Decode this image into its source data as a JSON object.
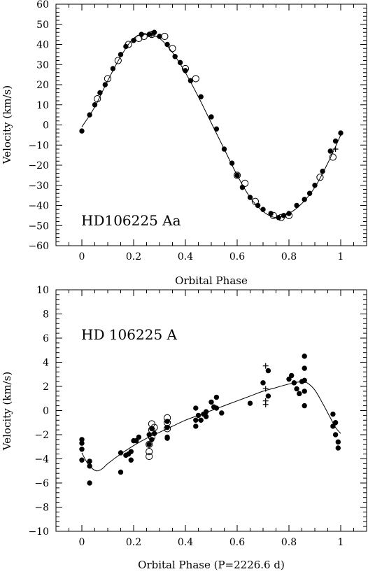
{
  "chart_data": [
    {
      "type": "scatter",
      "title": "HD106225 Aa",
      "xlabel": "Orbital Phase",
      "ylabel": "Velocity (km/s)",
      "xlim": [
        -0.1,
        1.1
      ],
      "ylim": [
        -60,
        60
      ],
      "xticks": [
        0,
        0.2,
        0.4,
        0.6,
        0.8,
        1
      ],
      "xtick_labels": [
        "0",
        "0.2",
        "0.4",
        "0.6",
        "0.8",
        "1"
      ],
      "yticks": [
        -60,
        -50,
        -40,
        -30,
        -20,
        -10,
        0,
        10,
        20,
        30,
        40,
        50,
        60
      ],
      "ytick_labels": [
        "−60",
        "−50",
        "−40",
        "−30",
        "−20",
        "−10",
        "0",
        "10",
        "20",
        "30",
        "40",
        "50",
        "60"
      ],
      "grid": false,
      "model_curve": {
        "x": [
          0.0,
          0.05,
          0.1,
          0.15,
          0.2,
          0.25,
          0.3,
          0.35,
          0.4,
          0.45,
          0.5,
          0.55,
          0.6,
          0.65,
          0.7,
          0.75,
          0.8,
          0.85,
          0.9,
          0.95,
          1.0
        ],
        "y": [
          -1,
          9,
          22,
          34,
          43,
          45,
          43,
          36,
          26,
          14,
          1,
          -12,
          -25,
          -36,
          -43,
          -46,
          -44,
          -39,
          -31,
          -19,
          -5
        ]
      },
      "series": [
        {
          "marker": "filled",
          "x": [
            0.0,
            0.03,
            0.05,
            0.07,
            0.09,
            0.12,
            0.15,
            0.17,
            0.2,
            0.23,
            0.26,
            0.28,
            0.3,
            0.33,
            0.36,
            0.38,
            0.4,
            0.42,
            0.46,
            0.5,
            0.52,
            0.55,
            0.58,
            0.6,
            0.62,
            0.65,
            0.68,
            0.7,
            0.73,
            0.76,
            0.78,
            0.8,
            0.83,
            0.86,
            0.88,
            0.9,
            0.93,
            0.96,
            0.98,
            1.0
          ],
          "y": [
            -3,
            5,
            10,
            16,
            20,
            28,
            35,
            39,
            42,
            45,
            45,
            46,
            44,
            40,
            34,
            31,
            27,
            22,
            14,
            4,
            -2,
            -12,
            -19,
            -25,
            -31,
            -36,
            -40,
            -42,
            -44,
            -46,
            -45,
            -44,
            -40,
            -37,
            -34,
            -30,
            -23,
            -13,
            -8,
            -4
          ]
        },
        {
          "marker": "open",
          "x": [
            0.06,
            0.1,
            0.14,
            0.18,
            0.22,
            0.24,
            0.27,
            0.32,
            0.35,
            0.4,
            0.44,
            0.6,
            0.63,
            0.67,
            0.74,
            0.77,
            0.8,
            0.92,
            0.97
          ],
          "y": [
            13,
            23,
            32,
            40,
            43,
            44,
            45,
            44,
            38,
            28,
            23,
            -25,
            -29,
            -38,
            -45,
            -46,
            -45,
            -26,
            -16
          ]
        },
        {
          "marker": "plus",
          "x": [
            0.27,
            0.98
          ],
          "y": [
            45,
            -12
          ]
        }
      ]
    },
    {
      "type": "scatter",
      "title": "HD 106225 A",
      "xlabel": "Orbital Phase (P=2226.6 d)",
      "ylabel": "Velocity (km/s)",
      "xlim": [
        -0.1,
        1.1
      ],
      "ylim": [
        -10,
        10
      ],
      "xticks": [
        0,
        0.2,
        0.4,
        0.6,
        0.8,
        1
      ],
      "xtick_labels": [
        "0",
        "0.2",
        "0.4",
        "0.6",
        "0.8",
        "1"
      ],
      "yticks": [
        -10,
        -8,
        -6,
        -4,
        -2,
        0,
        2,
        4,
        6,
        8,
        10
      ],
      "ytick_labels": [
        "−10",
        "−8",
        "−6",
        "−4",
        "−2",
        "0",
        "2",
        "4",
        "6",
        "8",
        "10"
      ],
      "grid": false,
      "model_curve": {
        "x": [
          0.0,
          0.02,
          0.04,
          0.06,
          0.08,
          0.1,
          0.15,
          0.2,
          0.25,
          0.3,
          0.35,
          0.4,
          0.45,
          0.5,
          0.55,
          0.6,
          0.65,
          0.7,
          0.75,
          0.8,
          0.85,
          0.87,
          0.9,
          0.93,
          0.96,
          0.98,
          1.0
        ],
        "y": [
          -3.5,
          -4.3,
          -4.8,
          -5.0,
          -4.8,
          -4.4,
          -3.6,
          -2.9,
          -2.3,
          -1.8,
          -1.3,
          -0.8,
          -0.4,
          0.0,
          0.4,
          0.8,
          1.2,
          1.6,
          1.9,
          2.2,
          2.4,
          2.3,
          1.7,
          0.6,
          -0.6,
          -1.4,
          -1.9
        ]
      },
      "series": [
        {
          "marker": "filled",
          "x": [
            0.0,
            0.0,
            0.0,
            0.0,
            0.03,
            0.03,
            0.03,
            0.15,
            0.15,
            0.17,
            0.18,
            0.19,
            0.19,
            0.2,
            0.21,
            0.22,
            0.26,
            0.26,
            0.27,
            0.27,
            0.28,
            0.33,
            0.33,
            0.33,
            0.33,
            0.44,
            0.44,
            0.44,
            0.45,
            0.46,
            0.47,
            0.48,
            0.48,
            0.5,
            0.51,
            0.52,
            0.52,
            0.54,
            0.65,
            0.7,
            0.72,
            0.72,
            0.8,
            0.81,
            0.82,
            0.83,
            0.84,
            0.85,
            0.86,
            0.86,
            0.86,
            0.86,
            0.86,
            0.97,
            0.97,
            0.98,
            0.98,
            0.99,
            0.99
          ],
          "y": [
            -4.1,
            -3.2,
            -2.7,
            -2.4,
            -4.2,
            -4.6,
            -6.0,
            -3.5,
            -5.1,
            -3.7,
            -3.6,
            -4.1,
            -3.4,
            -2.5,
            -2.5,
            -2.2,
            -2.8,
            -2.0,
            -1.5,
            -2.4,
            -1.9,
            -2.2,
            -1.4,
            -0.9,
            -2.3,
            -0.8,
            0.2,
            -1.3,
            -0.4,
            -0.8,
            -0.3,
            -0.5,
            -0.1,
            0.7,
            0.3,
            1.1,
            0.2,
            -0.2,
            0.6,
            2.3,
            3.3,
            1.2,
            2.6,
            2.9,
            2.3,
            1.8,
            1.4,
            2.4,
            4.5,
            3.5,
            2.5,
            1.6,
            0.4,
            -0.3,
            -1.3,
            -1.0,
            -2.0,
            -2.6,
            -3.1
          ]
        },
        {
          "marker": "open",
          "x": [
            0.26,
            0.26,
            0.26,
            0.27,
            0.27,
            0.27,
            0.28,
            0.33,
            0.33,
            0.33
          ],
          "y": [
            -3.8,
            -3.4,
            -2.8,
            -2.2,
            -1.6,
            -1.1,
            -1.4,
            -0.6,
            -1.0,
            -1.5
          ]
        },
        {
          "marker": "plus",
          "x": [
            0.71,
            0.71,
            0.71,
            0.71
          ],
          "y": [
            3.7,
            1.8,
            0.8,
            0.5
          ]
        }
      ]
    }
  ]
}
